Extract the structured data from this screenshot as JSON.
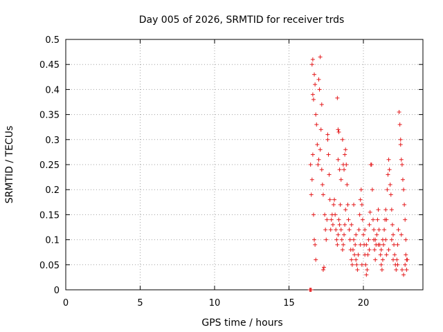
{
  "chart_data": {
    "type": "scatter",
    "title": "Day 005 of 2026, SRMTID for receiver trds",
    "xlabel": "GPS time / hours",
    "ylabel": "SRMTID / TECUs",
    "xlim": [
      0,
      24
    ],
    "ylim": [
      0,
      0.5
    ],
    "xticks": [
      0,
      5,
      10,
      15,
      20
    ],
    "xtick_labels": [
      "0",
      "5",
      "10",
      "15",
      "20"
    ],
    "yticks": [
      0,
      0.05,
      0.1,
      0.15,
      0.2,
      0.25,
      0.3,
      0.35,
      0.4,
      0.45,
      0.5
    ],
    "ytick_labels": [
      "0",
      "0.05",
      "0.1",
      "0.15",
      "0.2",
      "0.25",
      "0.3",
      "0.35",
      "0.4",
      "0.45",
      "0.5"
    ],
    "grid": true,
    "marker": "plus",
    "color": "#e41a1c",
    "series": [
      {
        "points": [
          [
            16.4,
            0.0
          ],
          [
            16.45,
            0.0
          ],
          [
            16.5,
            0.0
          ],
          [
            16.45,
            0.25
          ],
          [
            16.5,
            0.19
          ],
          [
            16.55,
            0.45
          ],
          [
            16.6,
            0.46
          ],
          [
            16.6,
            0.39
          ],
          [
            16.65,
            0.38
          ],
          [
            16.55,
            0.22
          ],
          [
            16.6,
            0.27
          ],
          [
            16.65,
            0.15
          ],
          [
            16.7,
            0.1
          ],
          [
            16.75,
            0.09
          ],
          [
            16.8,
            0.06
          ],
          [
            16.7,
            0.43
          ],
          [
            16.75,
            0.41
          ],
          [
            16.8,
            0.35
          ],
          [
            16.85,
            0.33
          ],
          [
            16.9,
            0.29
          ],
          [
            16.95,
            0.25
          ],
          [
            17.0,
            0.26
          ],
          [
            17.0,
            0.42
          ],
          [
            17.05,
            0.4
          ],
          [
            17.1,
            0.465
          ],
          [
            17.1,
            0.28
          ],
          [
            17.15,
            0.32
          ],
          [
            17.2,
            0.37
          ],
          [
            17.2,
            0.24
          ],
          [
            17.25,
            0.21
          ],
          [
            17.3,
            0.19
          ],
          [
            17.3,
            0.04
          ],
          [
            17.35,
            0.045
          ],
          [
            17.4,
            0.15
          ],
          [
            17.45,
            0.12
          ],
          [
            17.5,
            0.1
          ],
          [
            17.55,
            0.14
          ],
          [
            17.6,
            0.3
          ],
          [
            17.6,
            0.31
          ],
          [
            17.65,
            0.27
          ],
          [
            17.7,
            0.23
          ],
          [
            17.75,
            0.18
          ],
          [
            17.8,
            0.12
          ],
          [
            17.85,
            0.14
          ],
          [
            17.9,
            0.15
          ],
          [
            17.95,
            0.13
          ],
          [
            18.0,
            0.17
          ],
          [
            18.05,
            0.18
          ],
          [
            18.1,
            0.15
          ],
          [
            18.15,
            0.12
          ],
          [
            18.2,
            0.1
          ],
          [
            18.25,
            0.09
          ],
          [
            18.3,
            0.11
          ],
          [
            18.35,
            0.14
          ],
          [
            18.4,
            0.13
          ],
          [
            18.45,
            0.17
          ],
          [
            18.5,
            0.12
          ],
          [
            18.25,
            0.383
          ],
          [
            18.3,
            0.32
          ],
          [
            18.35,
            0.315
          ],
          [
            18.3,
            0.26
          ],
          [
            18.4,
            0.24
          ],
          [
            18.5,
            0.22
          ],
          [
            18.6,
            0.3
          ],
          [
            18.65,
            0.25
          ],
          [
            18.7,
            0.24
          ],
          [
            18.75,
            0.27
          ],
          [
            18.8,
            0.28
          ],
          [
            18.85,
            0.25
          ],
          [
            18.9,
            0.21
          ],
          [
            18.95,
            0.17
          ],
          [
            19.0,
            0.14
          ],
          [
            19.05,
            0.12
          ],
          [
            18.55,
            0.1
          ],
          [
            18.6,
            0.08
          ],
          [
            18.65,
            0.09
          ],
          [
            18.7,
            0.11
          ],
          [
            18.75,
            0.13
          ],
          [
            18.8,
            0.16
          ],
          [
            19.1,
            0.1
          ],
          [
            19.15,
            0.08
          ],
          [
            19.2,
            0.06
          ],
          [
            19.25,
            0.05
          ],
          [
            19.3,
            0.08
          ],
          [
            19.35,
            0.1
          ],
          [
            19.4,
            0.07
          ],
          [
            19.45,
            0.09
          ],
          [
            19.5,
            0.06
          ],
          [
            19.55,
            0.05
          ],
          [
            19.6,
            0.04
          ],
          [
            19.65,
            0.07
          ],
          [
            19.7,
            0.12
          ],
          [
            19.75,
            0.15
          ],
          [
            19.8,
            0.18
          ],
          [
            19.85,
            0.2
          ],
          [
            19.9,
            0.17
          ],
          [
            19.95,
            0.14
          ],
          [
            20.0,
            0.11
          ],
          [
            20.05,
            0.09
          ],
          [
            20.1,
            0.07
          ],
          [
            20.15,
            0.05
          ],
          [
            20.2,
            0.03
          ],
          [
            20.25,
            0.04
          ],
          [
            20.3,
            0.07
          ],
          [
            20.35,
            0.1
          ],
          [
            20.4,
            0.13
          ],
          [
            20.45,
            0.155
          ],
          [
            20.5,
            0.25
          ],
          [
            20.55,
            0.25
          ],
          [
            20.6,
            0.2
          ],
          [
            20.65,
            0.14
          ],
          [
            20.7,
            0.1
          ],
          [
            20.75,
            0.08
          ],
          [
            20.8,
            0.06
          ],
          [
            20.85,
            0.09
          ],
          [
            20.9,
            0.11
          ],
          [
            20.95,
            0.14
          ],
          [
            21.0,
            0.16
          ],
          [
            21.05,
            0.12
          ],
          [
            21.1,
            0.09
          ],
          [
            21.15,
            0.07
          ],
          [
            21.2,
            0.05
          ],
          [
            21.25,
            0.04
          ],
          [
            21.3,
            0.06
          ],
          [
            21.35,
            0.09
          ],
          [
            21.4,
            0.12
          ],
          [
            21.45,
            0.14
          ],
          [
            21.5,
            0.1
          ],
          [
            21.55,
            0.07
          ],
          [
            21.5,
            0.16
          ],
          [
            21.55,
            0.14
          ],
          [
            21.6,
            0.2
          ],
          [
            21.65,
            0.23
          ],
          [
            21.7,
            0.26
          ],
          [
            21.75,
            0.24
          ],
          [
            21.8,
            0.21
          ],
          [
            21.85,
            0.19
          ],
          [
            21.9,
            0.16
          ],
          [
            21.95,
            0.13
          ],
          [
            22.0,
            0.11
          ],
          [
            22.05,
            0.09
          ],
          [
            22.1,
            0.07
          ],
          [
            22.15,
            0.05
          ],
          [
            22.2,
            0.04
          ],
          [
            22.25,
            0.06
          ],
          [
            22.3,
            0.09
          ],
          [
            22.35,
            0.12
          ],
          [
            22.4,
            0.355
          ],
          [
            22.45,
            0.33
          ],
          [
            22.5,
            0.3
          ],
          [
            22.5,
            0.29
          ],
          [
            22.55,
            0.26
          ],
          [
            22.6,
            0.25
          ],
          [
            22.65,
            0.22
          ],
          [
            22.7,
            0.2
          ],
          [
            22.75,
            0.17
          ],
          [
            22.8,
            0.14
          ],
          [
            22.85,
            0.1
          ],
          [
            22.9,
            0.06
          ],
          [
            22.6,
            0.04
          ],
          [
            22.7,
            0.03
          ],
          [
            22.8,
            0.05
          ],
          [
            22.85,
            0.07
          ],
          [
            22.9,
            0.04
          ],
          [
            22.95,
            0.06
          ],
          [
            19.2,
            0.13
          ],
          [
            19.5,
            0.11
          ],
          [
            19.8,
            0.09
          ],
          [
            20.1,
            0.12
          ],
          [
            20.4,
            0.08
          ],
          [
            20.7,
            0.12
          ],
          [
            21.0,
            0.09
          ],
          [
            21.3,
            0.1
          ],
          [
            21.7,
            0.08
          ],
          [
            22.0,
            0.06
          ],
          [
            22.3,
            0.05
          ],
          [
            19.35,
            0.17
          ],
          [
            19.9,
            0.05
          ],
          [
            20.2,
            0.09
          ],
          [
            20.8,
            0.1
          ],
          [
            21.2,
            0.08
          ],
          [
            21.9,
            0.1
          ],
          [
            22.55,
            0.11
          ]
        ]
      }
    ]
  }
}
